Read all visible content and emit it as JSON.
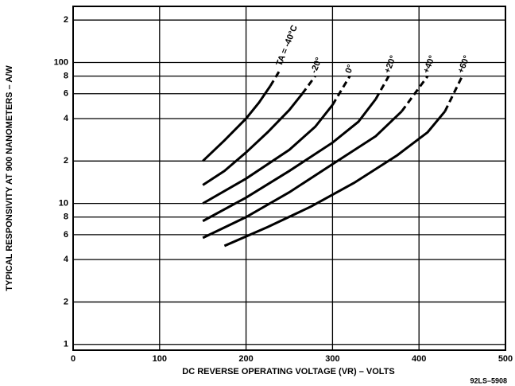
{
  "chart_data": {
    "type": "line",
    "xlabel": "DC REVERSE OPERATING VOLTAGE (VR) – VOLTS",
    "ylabel": "TYPICAL RESPONSIVITY AT 900 NANOMETERS – A/W",
    "note": "92LS–5908",
    "xlim": [
      0,
      500
    ],
    "xticks": [
      0,
      100,
      200,
      300,
      400,
      500
    ],
    "ylim": [
      0.91,
      250
    ],
    "log_y": true,
    "grid": true,
    "color": "#000000",
    "yticks": [
      1,
      2,
      4,
      6,
      8,
      10,
      {
        "value": 20,
        "label": "2"
      },
      {
        "value": 40,
        "label": "4"
      },
      {
        "value": 60,
        "label": "6"
      },
      {
        "value": 80,
        "label": "8"
      },
      100,
      {
        "value": 200,
        "label": "2"
      }
    ],
    "series": [
      {
        "name": "TA = -40°C",
        "x": [
          150,
          175,
          200,
          215,
          228,
          240
        ],
        "values": [
          20,
          28,
          40,
          52,
          68,
          90
        ]
      },
      {
        "name": "-20°",
        "x": [
          150,
          175,
          200,
          225,
          250,
          265,
          280
        ],
        "values": [
          13.5,
          17,
          23,
          32,
          46,
          60,
          80
        ]
      },
      {
        "name": "0°",
        "x": [
          150,
          200,
          250,
          280,
          300,
          320
        ],
        "values": [
          10,
          15,
          24,
          35,
          50,
          80
        ]
      },
      {
        "name": "+20°",
        "x": [
          150,
          200,
          250,
          300,
          330,
          350,
          365
        ],
        "values": [
          7.5,
          11,
          17,
          27,
          38,
          55,
          80
        ]
      },
      {
        "name": "+40°",
        "x": [
          150,
          200,
          250,
          300,
          350,
          380,
          410
        ],
        "values": [
          5.7,
          8,
          12,
          19,
          30,
          45,
          80
        ]
      },
      {
        "name": "+60°",
        "x": [
          175,
          225,
          275,
          325,
          375,
          410,
          430,
          450
        ],
        "values": [
          5,
          6.8,
          9.5,
          14,
          22,
          32,
          45,
          80
        ]
      }
    ]
  }
}
